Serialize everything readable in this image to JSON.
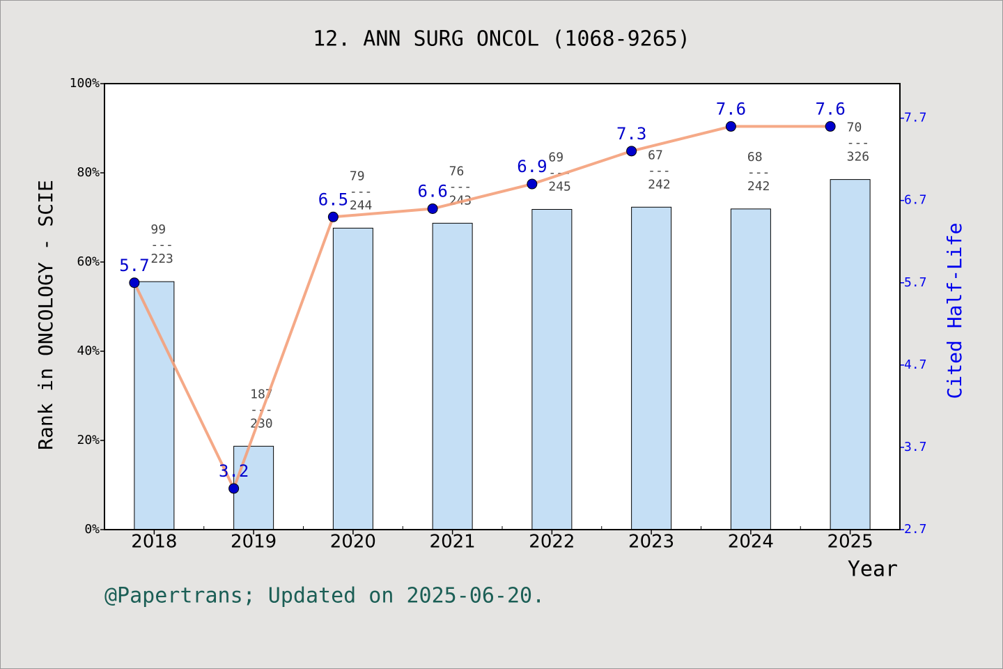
{
  "chart_data": {
    "type": "bar",
    "title": "12. ANN SURG ONCOL (1068-9265)",
    "x_label": "Year",
    "y_label": "Rank in ONCOLOGY - SCIE",
    "y2_label": "Cited Half-Life",
    "footer": "@Papertrans; Updated on 2025-06-20.",
    "categories": [
      "2018",
      "2019",
      "2020",
      "2021",
      "2022",
      "2023",
      "2024",
      "2025"
    ],
    "series": [
      {
        "type": "bar",
        "color": "#c5dff5",
        "values": [
          55.6,
          18.7,
          67.6,
          68.7,
          71.8,
          72.3,
          71.9,
          78.5
        ]
      },
      {
        "type": "line",
        "axis": "y2",
        "color": "#f4a07a",
        "marker_color": "#0000cc",
        "label_color": "#0000cc",
        "values": [
          5.7,
          3.2,
          6.5,
          6.6,
          6.9,
          7.3,
          7.6,
          7.6
        ]
      }
    ],
    "rank_separator": "---",
    "ranks": [
      {
        "rank": 99,
        "total": 223
      },
      {
        "rank": 187,
        "total": 230
      },
      {
        "rank": 79,
        "total": 244
      },
      {
        "rank": 76,
        "total": 243
      },
      {
        "rank": 69,
        "total": 245
      },
      {
        "rank": 67,
        "total": 242
      },
      {
        "rank": 68,
        "total": 242
      },
      {
        "rank": 70,
        "total": 326
      }
    ],
    "ylim": [
      0,
      100
    ],
    "yticks": [
      {
        "value": 0,
        "label": "0%"
      },
      {
        "value": 20,
        "label": "20%"
      },
      {
        "value": 40,
        "label": "40%"
      },
      {
        "value": 60,
        "label": "60%"
      },
      {
        "value": 80,
        "label": "80%"
      },
      {
        "value": 100,
        "label": "100%"
      }
    ],
    "y2lim": [
      2.7,
      8.12
    ],
    "y2ticks": [
      2.7,
      3.7,
      4.7,
      5.7,
      6.7,
      7.7
    ],
    "y2_color": "#0000ee",
    "footer_color": "#1b5e55"
  }
}
